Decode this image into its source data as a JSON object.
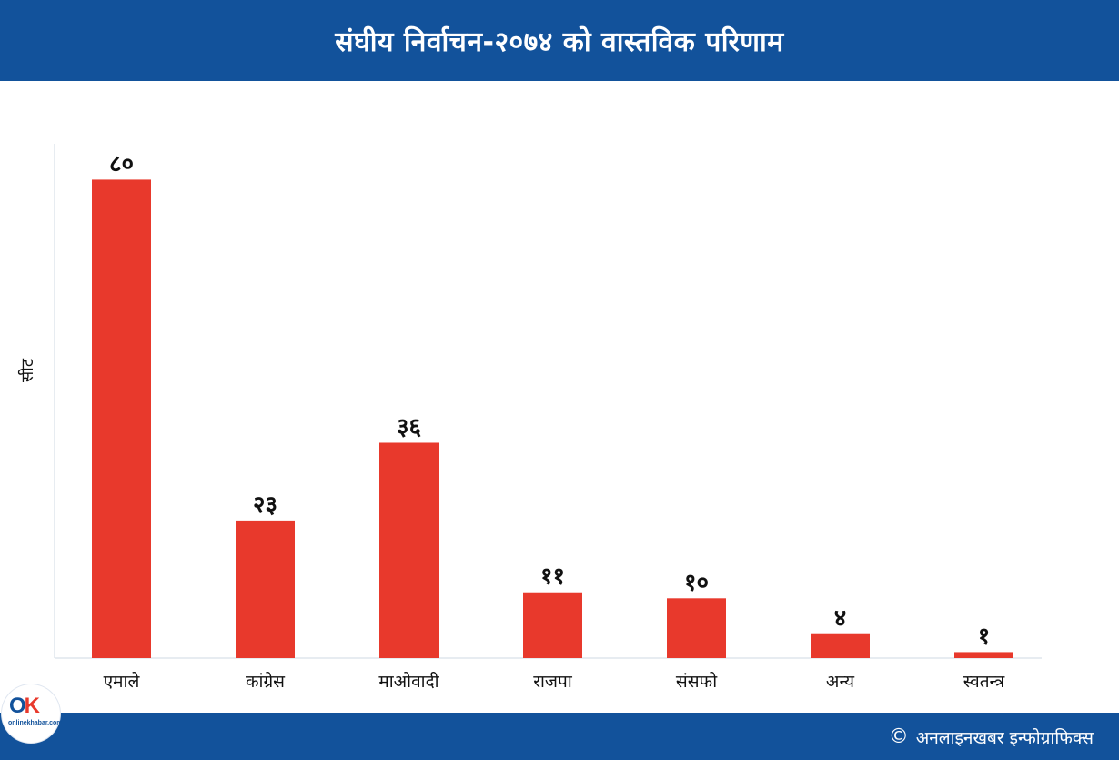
{
  "header": {
    "title": "संघीय निर्वाचन-२०७४ को वास्तविक परिणाम"
  },
  "chart_data": {
    "type": "bar",
    "title": "संघीय निर्वाचन-२०७४ को वास्तविक परिणाम",
    "xlabel": "",
    "ylabel": "सीट",
    "categories": [
      "एमाले",
      "कांग्रेस",
      "माओवादी",
      "राजपा",
      "संसफो",
      "अन्य",
      "स्वतन्त्र"
    ],
    "values": [
      80,
      23,
      36,
      11,
      10,
      4,
      1
    ],
    "value_labels": [
      "८०",
      "२३",
      "३६",
      "११",
      "१०",
      "४",
      "१"
    ],
    "ylim": [
      0,
      86
    ],
    "grid": false,
    "bar_color": "#e8392c"
  },
  "footer": {
    "copyright_symbol": "©",
    "credit": "अनलाइनखबर इन्फोग्राफिक्स"
  },
  "logo": {
    "word": "onlinekhabar.com"
  },
  "colors": {
    "header_bg": "#12529b",
    "bar": "#e8392c",
    "axis": "#cfd8e3"
  }
}
